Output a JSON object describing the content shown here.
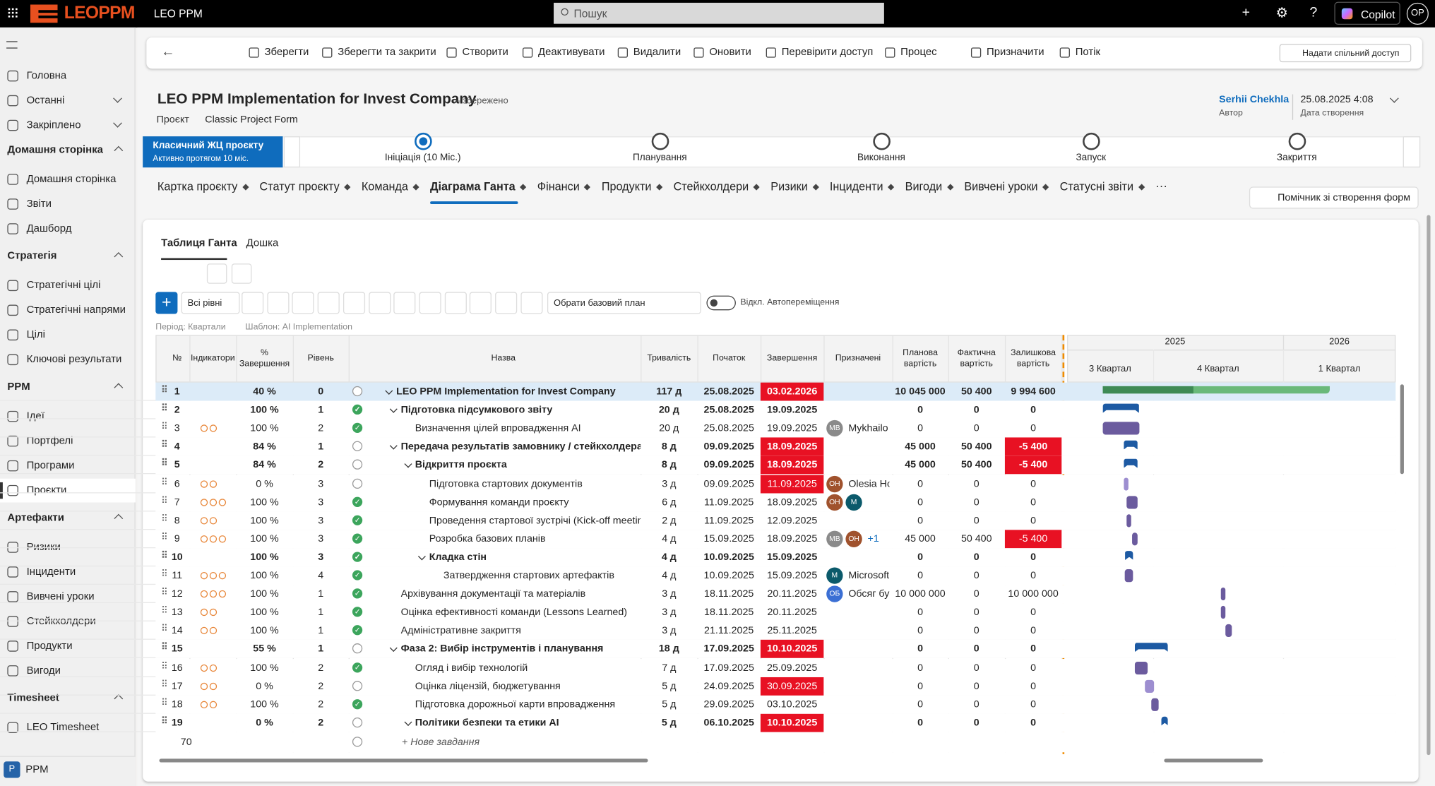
{
  "topbar": {
    "logo": "LEOPPM",
    "app": "LEO PPM",
    "search": "Пошук",
    "copilot": "Copilot",
    "user": "OP"
  },
  "sidebar": {
    "top": [
      "Головна",
      "Останні",
      "Закріплено"
    ],
    "groups": [
      {
        "title": "Домашня сторінка",
        "items": [
          "Домашня сторінка",
          "Звіти",
          "Дашборд"
        ]
      },
      {
        "title": "Стратегія",
        "items": [
          "Стратегічні цілі",
          "Стратегічні напрями",
          "Цілі",
          "Ключові результати"
        ]
      },
      {
        "title": "PPM",
        "items": [
          "Ідеї",
          "Портфелі",
          "Програми",
          "Проєкти"
        ]
      },
      {
        "title": "Артефакти",
        "items": [
          "Ризики",
          "Інциденти",
          "Вивчені уроки",
          "Стейкхолдери",
          "Продукти",
          "Вигоди"
        ]
      },
      {
        "title": "Timesheet",
        "items": [
          "LEO Timesheet"
        ]
      }
    ],
    "selected": "Проєкти",
    "area_badge": "P",
    "area": "PPM"
  },
  "commands": [
    "Зберегти",
    "Зберегти та закрити",
    "Створити",
    "Деактивувати",
    "Видалити",
    "Оновити",
    "Перевірити доступ",
    "Процес",
    "Призначити",
    "Потік"
  ],
  "share": "Надати спільний доступ",
  "header": {
    "title": "LEO PPM Implementation for Invest Company",
    "status": "– збережено",
    "entity": "Проєкт",
    "form": "Classic Project Form",
    "owner": "Serhii Chekhla",
    "owner_label": "Автор",
    "created": "25.08.2025 4:08",
    "created_label": "Дата створення"
  },
  "process": {
    "name": "Класичний ЖЦ проєкту",
    "duration": "Активно протягом 10 міс.",
    "stages": [
      "Ініціація  (10 Міс.)",
      "Планування",
      "Виконання",
      "Запуск",
      "Закриття"
    ],
    "active": 0
  },
  "tabs": [
    "Картка проєкту",
    "Статут проєкту",
    "Команда",
    "Діаграма Ганта",
    "Фінанси",
    "Продукти",
    "Стейкхолдери",
    "Ризики",
    "Інциденти",
    "Вигоди",
    "Вивчені уроки",
    "Статусні звіти"
  ],
  "active_tab": 3,
  "form_helper": "Помічник зі створення форм",
  "gantt": {
    "subtabs": [
      "Таблиця Ганта",
      "Дошка"
    ],
    "levels": "Всі рівні",
    "baseline": "Обрати базовий план",
    "auto_move": "Відкл. Автопереміщення",
    "period": "Період: Квартали",
    "template": "Шаблон: AI Implementation",
    "columns": [
      "№",
      "Індикатори",
      "% Завершення",
      "Рівень",
      "Назва",
      "Тривалість",
      "Початок",
      "Завершення",
      "Призначені",
      "Планова вартість",
      "Фактична вартість",
      "Залишкова вартість"
    ],
    "years": [
      "2025",
      "2026"
    ],
    "quarters": [
      "3 Квартал",
      "4 Квартал",
      "1 Квартал"
    ],
    "rows": [
      {
        "id": "1",
        "pct": "40 %",
        "level": "0",
        "name": "LEO PPM Implementation for Invest Company",
        "duration": "117 д",
        "start": "25.08.2025",
        "end": "03.02.2026",
        "plan": "10 045 000",
        "fact": "50 400",
        "remaining": "9 994 600",
        "bold": true,
        "group": true,
        "done": false,
        "late": true,
        "indicators": 0,
        "assignees": []
      },
      {
        "id": "2",
        "pct": "100 %",
        "level": "1",
        "name": "Підготовка підсумкового звіту",
        "duration": "20 д",
        "start": "25.08.2025",
        "end": "19.09.2025",
        "plan": "0",
        "fact": "0",
        "remaining": "0",
        "bold": true,
        "group": true,
        "done": true,
        "indicators": 0,
        "assignees": []
      },
      {
        "id": "3",
        "pct": "100 %",
        "level": "2",
        "name": "Визначення цілей впровадження AI",
        "duration": "20 д",
        "start": "25.08.2025",
        "end": "19.09.2025",
        "plan": "0",
        "fact": "0",
        "remaining": "0",
        "done": true,
        "indicators": 2,
        "assignees": [
          {
            "initials": "MB",
            "color": "#8a8a8a"
          }
        ],
        "assignee_name": "Mykhailo"
      },
      {
        "id": "4",
        "pct": "84 %",
        "level": "1",
        "name": "Передача результатів замовнику / стейкхолдерам",
        "duration": "8 д",
        "start": "09.09.2025",
        "end": "18.09.2025",
        "plan": "45 000",
        "fact": "50 400",
        "remaining": "-5 400",
        "bold": true,
        "group": true,
        "late": true,
        "over": true,
        "indicators": 0,
        "assignees": []
      },
      {
        "id": "5",
        "pct": "84 %",
        "level": "2",
        "name": "Відкриття проєкта",
        "duration": "8 д",
        "start": "09.09.2025",
        "end": "18.09.2025",
        "plan": "45 000",
        "fact": "50 400",
        "remaining": "-5 400",
        "bold": true,
        "group": true,
        "late": true,
        "over": true,
        "indicators": 0,
        "assignees": []
      },
      {
        "id": "6",
        "pct": "0 %",
        "level": "3",
        "name": "Підготовка стартових документів",
        "duration": "3 д",
        "start": "09.09.2025",
        "end": "11.09.2025",
        "plan": "0",
        "fact": "0",
        "remaining": "0",
        "late": true,
        "indicators": 2,
        "assignees": [
          {
            "initials": "OH",
            "color": "#a0522d"
          }
        ],
        "assignee_name": "Olesia Ho"
      },
      {
        "id": "7",
        "pct": "100 %",
        "level": "3",
        "name": "Формування команди проєкту",
        "duration": "6 д",
        "start": "11.09.2025",
        "end": "18.09.2025",
        "plan": "0",
        "fact": "0",
        "remaining": "0",
        "done": true,
        "indicators": 3,
        "assignees": [
          {
            "initials": "OH",
            "color": "#a0522d"
          },
          {
            "initials": "M",
            "color": "#0b5a6b"
          }
        ]
      },
      {
        "id": "8",
        "pct": "100 %",
        "level": "3",
        "name": "Проведення стартової зустрічі (Kick-off meeting)",
        "duration": "2 д",
        "start": "11.09.2025",
        "end": "12.09.2025",
        "plan": "0",
        "fact": "0",
        "remaining": "0",
        "done": true,
        "indicators": 2,
        "assignees": []
      },
      {
        "id": "9",
        "pct": "100 %",
        "level": "3",
        "name": "Розробка базових планів",
        "duration": "4 д",
        "start": "15.09.2025",
        "end": "18.09.2025",
        "plan": "45 000",
        "fact": "50 400",
        "remaining": "-5 400",
        "done": true,
        "over": true,
        "indicators": 3,
        "assignees": [
          {
            "initials": "MB",
            "color": "#8a8a8a"
          },
          {
            "initials": "OH",
            "color": "#a0522d"
          }
        ],
        "assignee_more": "+1"
      },
      {
        "id": "10",
        "pct": "100 %",
        "level": "3",
        "name": "Кладка стін",
        "duration": "4 д",
        "start": "10.09.2025",
        "end": "15.09.2025",
        "plan": "0",
        "fact": "0",
        "remaining": "0",
        "bold": true,
        "group": true,
        "done": true,
        "indicators": 0,
        "assignees": []
      },
      {
        "id": "11",
        "pct": "100 %",
        "level": "4",
        "name": "Затвердження стартових артефактів",
        "duration": "4 д",
        "start": "10.09.2025",
        "end": "15.09.2025",
        "plan": "0",
        "fact": "0",
        "remaining": "0",
        "done": true,
        "indicators": 3,
        "assignees": [
          {
            "initials": "M",
            "color": "#0b5a6b"
          }
        ],
        "assignee_name": "Microsoft"
      },
      {
        "id": "12",
        "pct": "100 %",
        "level": "1",
        "name": "Архівування документації та матеріалів",
        "duration": "3 д",
        "start": "18.11.2025",
        "end": "20.11.2025",
        "plan": "10 000 000",
        "fact": "0",
        "remaining": "10 000 000",
        "done": true,
        "indicators": 3,
        "assignees": [
          {
            "initials": "ОБ",
            "color": "#3b6fd4"
          }
        ],
        "assignee_name": "Обсяг бу"
      },
      {
        "id": "13",
        "pct": "100 %",
        "level": "1",
        "name": "Оцінка ефективності команди (Lessons Learned)",
        "duration": "3 д",
        "start": "18.11.2025",
        "end": "20.11.2025",
        "plan": "0",
        "fact": "0",
        "remaining": "0",
        "done": true,
        "indicators": 2,
        "assignees": []
      },
      {
        "id": "14",
        "pct": "100 %",
        "level": "1",
        "name": "Адміністративне закриття",
        "duration": "3 д",
        "start": "21.11.2025",
        "end": "25.11.2025",
        "plan": "0",
        "fact": "0",
        "remaining": "0",
        "done": true,
        "indicators": 2,
        "assignees": []
      },
      {
        "id": "15",
        "pct": "55 %",
        "level": "1",
        "name": "Фаза 2: Вибір інструментів і планування",
        "duration": "18 д",
        "start": "17.09.2025",
        "end": "10.10.2025",
        "plan": "0",
        "fact": "0",
        "remaining": "0",
        "bold": true,
        "group": true,
        "late": true,
        "indicators": 0,
        "assignees": []
      },
      {
        "id": "16",
        "pct": "100 %",
        "level": "2",
        "name": "Огляд і вибір технологій",
        "duration": "7 д",
        "start": "17.09.2025",
        "end": "25.09.2025",
        "plan": "0",
        "fact": "0",
        "remaining": "0",
        "done": true,
        "indicators": 2,
        "assignees": []
      },
      {
        "id": "17",
        "pct": "0 %",
        "level": "2",
        "name": "Оцінка ліцензій, бюджетування",
        "duration": "5 д",
        "start": "24.09.2025",
        "end": "30.09.2025",
        "plan": "0",
        "fact": "0",
        "remaining": "0",
        "late": true,
        "indicators": 2,
        "assignees": []
      },
      {
        "id": "18",
        "pct": "100 %",
        "level": "2",
        "name": "Підготовка дорожньої карти впровадження",
        "duration": "5 д",
        "start": "29.09.2025",
        "end": "03.10.2025",
        "plan": "0",
        "fact": "0",
        "remaining": "0",
        "done": true,
        "indicators": 2,
        "assignees": []
      },
      {
        "id": "19",
        "pct": "0 %",
        "level": "2",
        "name": "Політики безпеки та етики AI",
        "duration": "5 д",
        "start": "06.10.2025",
        "end": "10.10.2025",
        "plan": "0",
        "fact": "0",
        "remaining": "0",
        "bold": true,
        "group": true,
        "late": true,
        "indicators": 0,
        "assignees": []
      }
    ],
    "new_row": {
      "id": "70",
      "label": "+ Нове завдання"
    }
  }
}
